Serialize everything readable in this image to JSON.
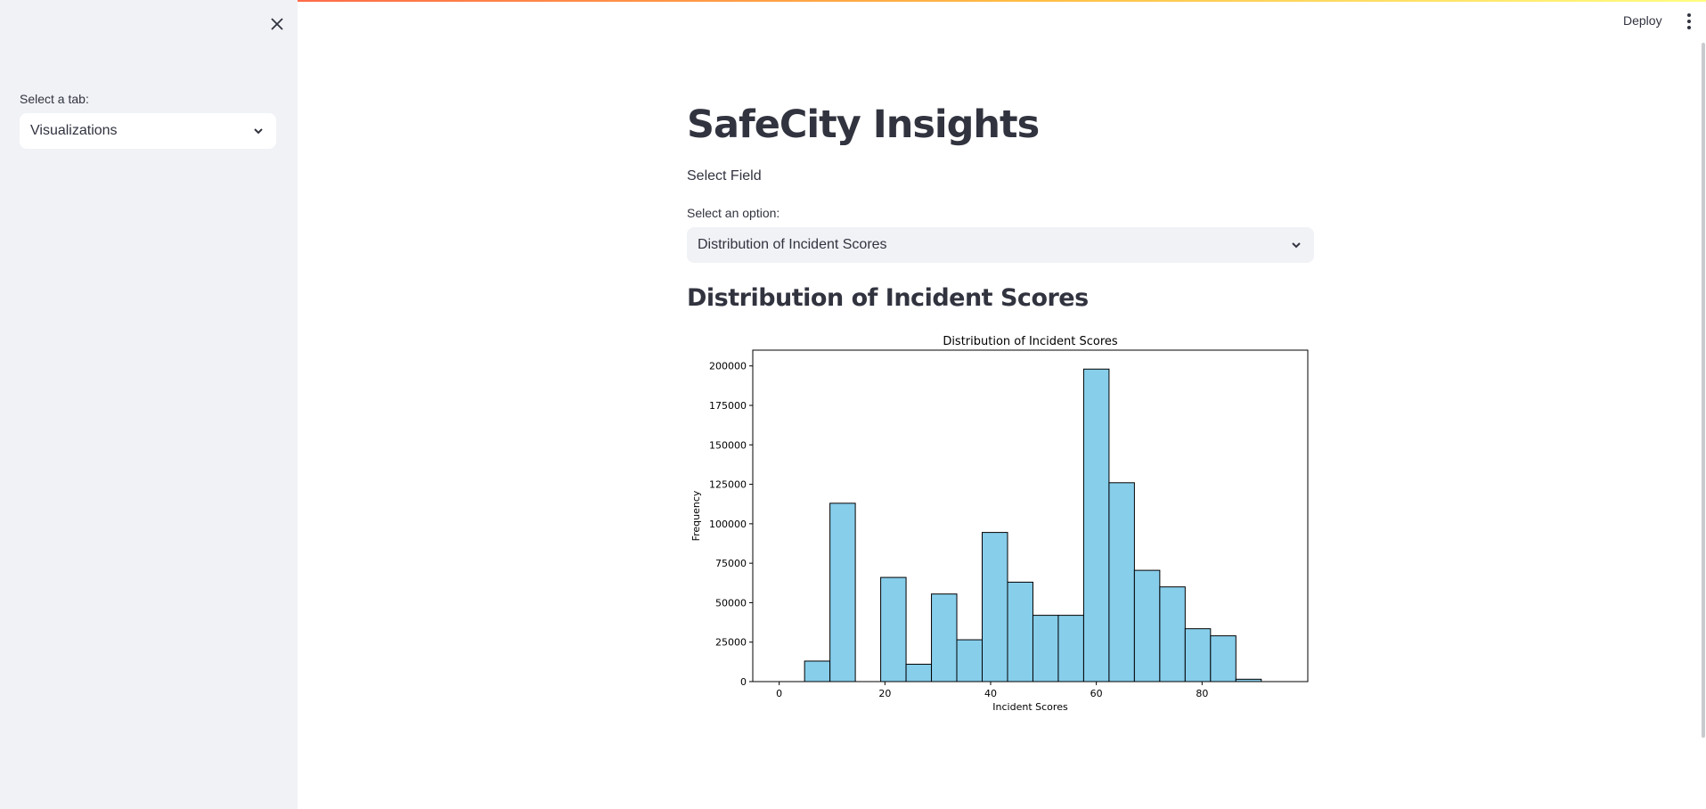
{
  "sidebar": {
    "tab_label": "Select a tab:",
    "tab_value": "Visualizations",
    "close_icon": "close-icon"
  },
  "header": {
    "deploy_label": "Deploy",
    "menu_icon": "kebab-menu-icon"
  },
  "main": {
    "title": "SafeCity Insights",
    "select_field_text": "Select Field",
    "option_label": "Select an option:",
    "option_value": "Distribution of Incident Scores",
    "section_title": "Distribution of Incident Scores"
  },
  "colors": {
    "bar_fill": "#87ceeb",
    "bar_edge": "#000000",
    "sidebar_bg": "#f0f2f6"
  },
  "chart_data": {
    "type": "bar",
    "title": "Distribution of Incident Scores",
    "xlabel": "Incident Scores",
    "ylabel": "Frequency",
    "bin_width": 4.8,
    "x_start": 0,
    "xlim": [
      -5,
      100
    ],
    "ylim": [
      0,
      210000
    ],
    "xticks": [
      0,
      20,
      40,
      60,
      80
    ],
    "yticks": [
      0,
      25000,
      50000,
      75000,
      100000,
      125000,
      150000,
      175000,
      200000
    ],
    "values": [
      0,
      13000,
      113000,
      0,
      66000,
      11000,
      55500,
      26500,
      94500,
      63000,
      42000,
      42000,
      198000,
      126000,
      70500,
      60000,
      33500,
      29000,
      1500
    ],
    "grid": false
  }
}
